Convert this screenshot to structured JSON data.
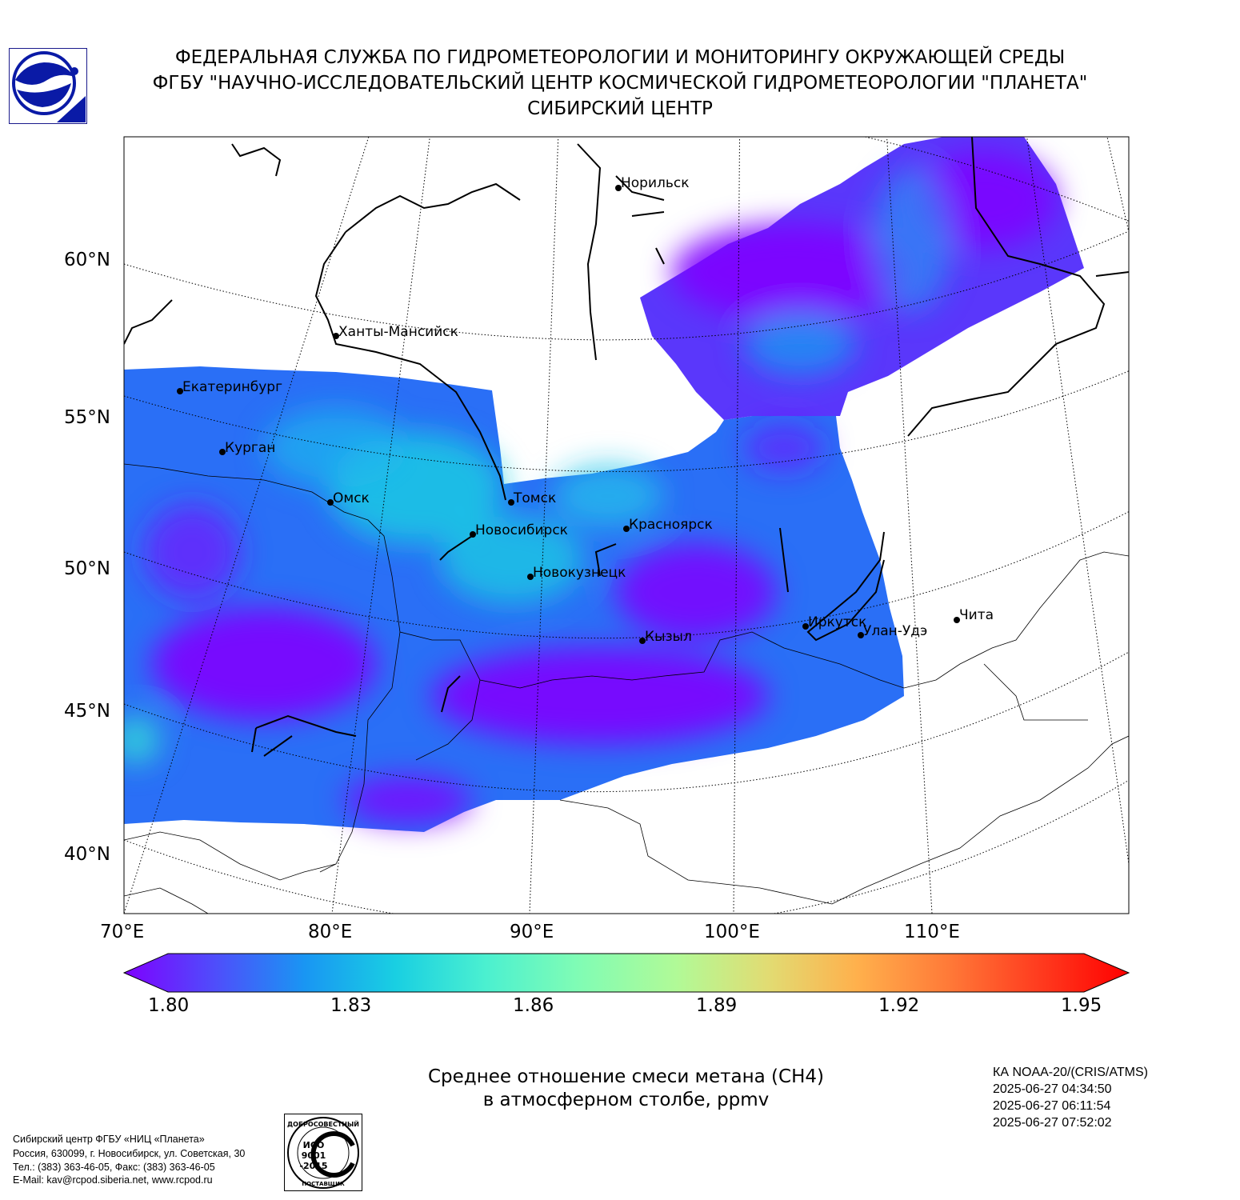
{
  "header": {
    "line1": "ФЕДЕРАЛЬНАЯ СЛУЖБА ПО ГИДРОМЕТЕОРОЛОГИИ И МОНИТОРИНГУ ОКРУЖАЮЩЕЙ СРЕДЫ",
    "line2": "ФГБУ \"НАУЧНО-ИССЛЕДОВАТЕЛЬСКИЙ ЦЕНТР КОСМИЧЕСКОЙ ГИДРОМЕТЕОРОЛОГИИ \"ПЛАНЕТА\"",
    "line3": "СИБИРСКИЙ ЦЕНТР"
  },
  "map": {
    "lat_labels": [
      "60°N",
      "55°N",
      "50°N",
      "45°N",
      "40°N"
    ],
    "lon_labels": [
      "70°E",
      "80°E",
      "90°E",
      "100°E",
      "110°E"
    ],
    "cities": [
      "Норильск",
      "Ханты-Мансийск",
      "Екатеринбург",
      "Курган",
      "Омск",
      "Томск",
      "Новосибирск",
      "Красноярск",
      "Новокузнецк",
      "Иркутск",
      "Улан-Удэ",
      "Чита",
      "Кызыл"
    ]
  },
  "colorbar": {
    "min": 1.8,
    "max": 1.95,
    "tick_labels": [
      "1.80",
      "1.83",
      "1.86",
      "1.89",
      "1.92",
      "1.95"
    ],
    "colors": [
      "#7f00ff",
      "#4f4dfb",
      "#1996f3",
      "#19cfe2",
      "#4bf0d0",
      "#7ffcb5",
      "#b1fa97",
      "#e1dc73",
      "#ffb04c",
      "#ff7a38",
      "#ff3c1f",
      "#ff0000"
    ]
  },
  "title": {
    "line1": "Среднее отношение смеси метана (CH4)",
    "line2": "в атмосферном столбе, ppmv"
  },
  "satellite": {
    "name": "КА NOAA-20/(CRIS/ATMS)",
    "passes": [
      "2025-06-27 04:34:50",
      "2025-06-27 06:11:54",
      "2025-06-27 07:52:02"
    ]
  },
  "footer": {
    "lines": [
      "Сибирский центр ФГБУ «НИЦ «Планета»",
      "Россия, 630099, г. Новосибирск, ул. Советская, 30",
      "Тел.: (383) 363-46-05, Факс: (383) 363-46-05",
      "E-Mail: kav@rcpod.siberia.net, www.rcpod.ru"
    ]
  },
  "iso_badge": {
    "top_text": "ДОБРОСОВЕСТНЫЙ",
    "code1": "ИСО",
    "code2": "9001",
    "code3": "-2015",
    "bottom_text": "ПОСТАВЩИК"
  }
}
